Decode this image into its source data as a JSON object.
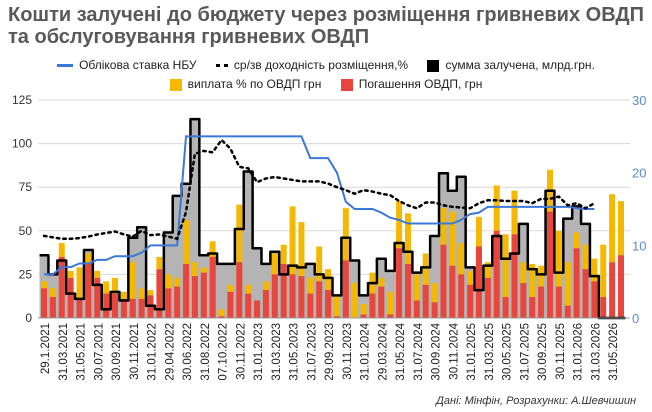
{
  "title": "Кошти залучені до бюджету через розміщення гривневих ОВДП та обслуговування гривневих ОВДП",
  "source": "Дані: Мінфін, Розрахунки: А.Шевчишин",
  "colors": {
    "rate": "#3b78d8",
    "yield": "#000000",
    "sum_line": "#000000",
    "sum_fill": "#b4b4b4",
    "interest": "#f5b800",
    "redemption": "#e8453c",
    "right_axis": "#5b8bd6"
  },
  "chart_data": {
    "type": "bar",
    "title": "Кошти залучені до бюджету через розміщення гривневих ОВДП та обслуговування гривневих ОВДП",
    "legend": [
      "Облікова ставка НБУ",
      "ср/зв доходність розміщення,%",
      "сумма залучена, млрд.грн.",
      "виплата % по ОВДП грн",
      "Погашення ОВДП, грн"
    ],
    "legend_placement": "top",
    "x_tick_labels": [
      "29.1.2021",
      "31.03.2021",
      "31.05.2021",
      "30.07.2021",
      "30.09.2021",
      "30.11.2021",
      "31.01.2022",
      "29.04.2022",
      "30.06.2022",
      "31.08.2022",
      "07.10.2022",
      "30.11.2022",
      "31.01.2023",
      "31.03.2023",
      "31.05.2023",
      "31.07.2023",
      "29.09.2023",
      "30.11.2023",
      "31.01.2024",
      "29.03.2024",
      "31.05.2024",
      "31.07.2024",
      "30.09.2024",
      "30.11.2024",
      "31.01.2025",
      "31.03.2025",
      "30.05.2025",
      "31.07.2025",
      "30.09.2025",
      "30.11.2025",
      "31.01.2026",
      "31.03.2026",
      "31.05.2026"
    ],
    "y_left": {
      "ylim": [
        0,
        125
      ],
      "ticks": [
        "0",
        "25",
        "50",
        "75",
        "100",
        "125"
      ]
    },
    "y_right": {
      "ylim": [
        0,
        30
      ],
      "ticks": [
        "0",
        "10",
        "20",
        "30"
      ]
    },
    "grid": true,
    "series": [
      {
        "name": "Погашення ОВДП, грн",
        "kind": "stacked-bar",
        "values": [
          17,
          12,
          35,
          23,
          11,
          31,
          23,
          14,
          14,
          11,
          11,
          11,
          13,
          28,
          17,
          18,
          31,
          24,
          26,
          35,
          1,
          15,
          32,
          14,
          10,
          16,
          25,
          31,
          25,
          24,
          14,
          21,
          16,
          1,
          33,
          0,
          2,
          14,
          18,
          2,
          40,
          31,
          10,
          19,
          9,
          42,
          30,
          25,
          19,
          41,
          23,
          50,
          12,
          48,
          20,
          12,
          18,
          61,
          18,
          7,
          40,
          28,
          21,
          12,
          32,
          36
        ]
      },
      {
        "name": "виплата % по ОВДП грн",
        "kind": "stacked-bar",
        "values": [
          4,
          5,
          8,
          4,
          18,
          6,
          4,
          7,
          9,
          4,
          21,
          6,
          3,
          7,
          8,
          5,
          25,
          8,
          3,
          9,
          4,
          4,
          33,
          5,
          0,
          5,
          12,
          11,
          39,
          31,
          9,
          20,
          12,
          12,
          30,
          20,
          6,
          12,
          5,
          13,
          27,
          29,
          15,
          18,
          11,
          21,
          31,
          18,
          8,
          17,
          9,
          26,
          36,
          25,
          12,
          19,
          12,
          24,
          32,
          25,
          9,
          14,
          13,
          30,
          39,
          31
        ]
      },
      {
        "name": "сумма залучена, млрд.грн.",
        "kind": "step-area",
        "values": [
          36,
          25,
          33,
          14,
          11,
          39,
          19,
          5,
          15,
          10,
          46,
          52,
          7,
          5,
          49,
          70,
          77,
          114,
          36,
          37,
          31,
          31,
          51,
          84,
          40,
          31,
          38,
          25,
          30,
          29,
          31,
          25,
          23,
          13,
          46,
          33,
          13,
          20,
          34,
          27,
          43,
          38,
          26,
          29,
          47,
          83,
          73,
          81,
          29,
          16,
          30,
          47,
          34,
          37,
          54,
          28,
          25,
          73,
          26,
          57,
          64,
          54,
          24,
          0,
          0,
          0
        ]
      },
      {
        "name": "Облікова ставка НБУ",
        "kind": "line",
        "axis": "right",
        "values": [
          6,
          6,
          7,
          7,
          7.5,
          7.5,
          8,
          8,
          8.5,
          8.5,
          8.5,
          9,
          10,
          10,
          10,
          10,
          25,
          25,
          25,
          25,
          25,
          25,
          25,
          25,
          25,
          25,
          25,
          25,
          25,
          25,
          22,
          22,
          22,
          20,
          16,
          15,
          15,
          15,
          14.5,
          13.8,
          13.5,
          13,
          13,
          13,
          13,
          13,
          13,
          13.5,
          14.3,
          14.5,
          15.3,
          15.3,
          15.3,
          15.3,
          15.3,
          15.3,
          15.3,
          15.3,
          15.3,
          15.3,
          15.1,
          15,
          15,
          null,
          null,
          null
        ]
      },
      {
        "name": "ср/зв доходність розміщення,%",
        "kind": "dotted-line",
        "axis": "right",
        "values": [
          11.3,
          11.1,
          10.9,
          10.9,
          11,
          11.2,
          11.5,
          11.7,
          11.9,
          11.5,
          11.2,
          12,
          11.4,
          11.5,
          11.2,
          10.9,
          14.6,
          22.6,
          23,
          22.8,
          24.5,
          23.3,
          20.8,
          20.6,
          18.7,
          19.2,
          19.4,
          19.2,
          19,
          18.8,
          18.8,
          18.8,
          18.5,
          18,
          17.6,
          17.1,
          17.6,
          17.4,
          17.1,
          16.9,
          16.1,
          15.5,
          15.1,
          15.9,
          15.9,
          15.5,
          15.3,
          15.2,
          15.1,
          15.8,
          16.2,
          16.2,
          16.1,
          16.1,
          16.1,
          15.8,
          16.4,
          16.4,
          16.7,
          15.5,
          15.8,
          15.1,
          15.8,
          null,
          null,
          null
        ]
      }
    ]
  }
}
